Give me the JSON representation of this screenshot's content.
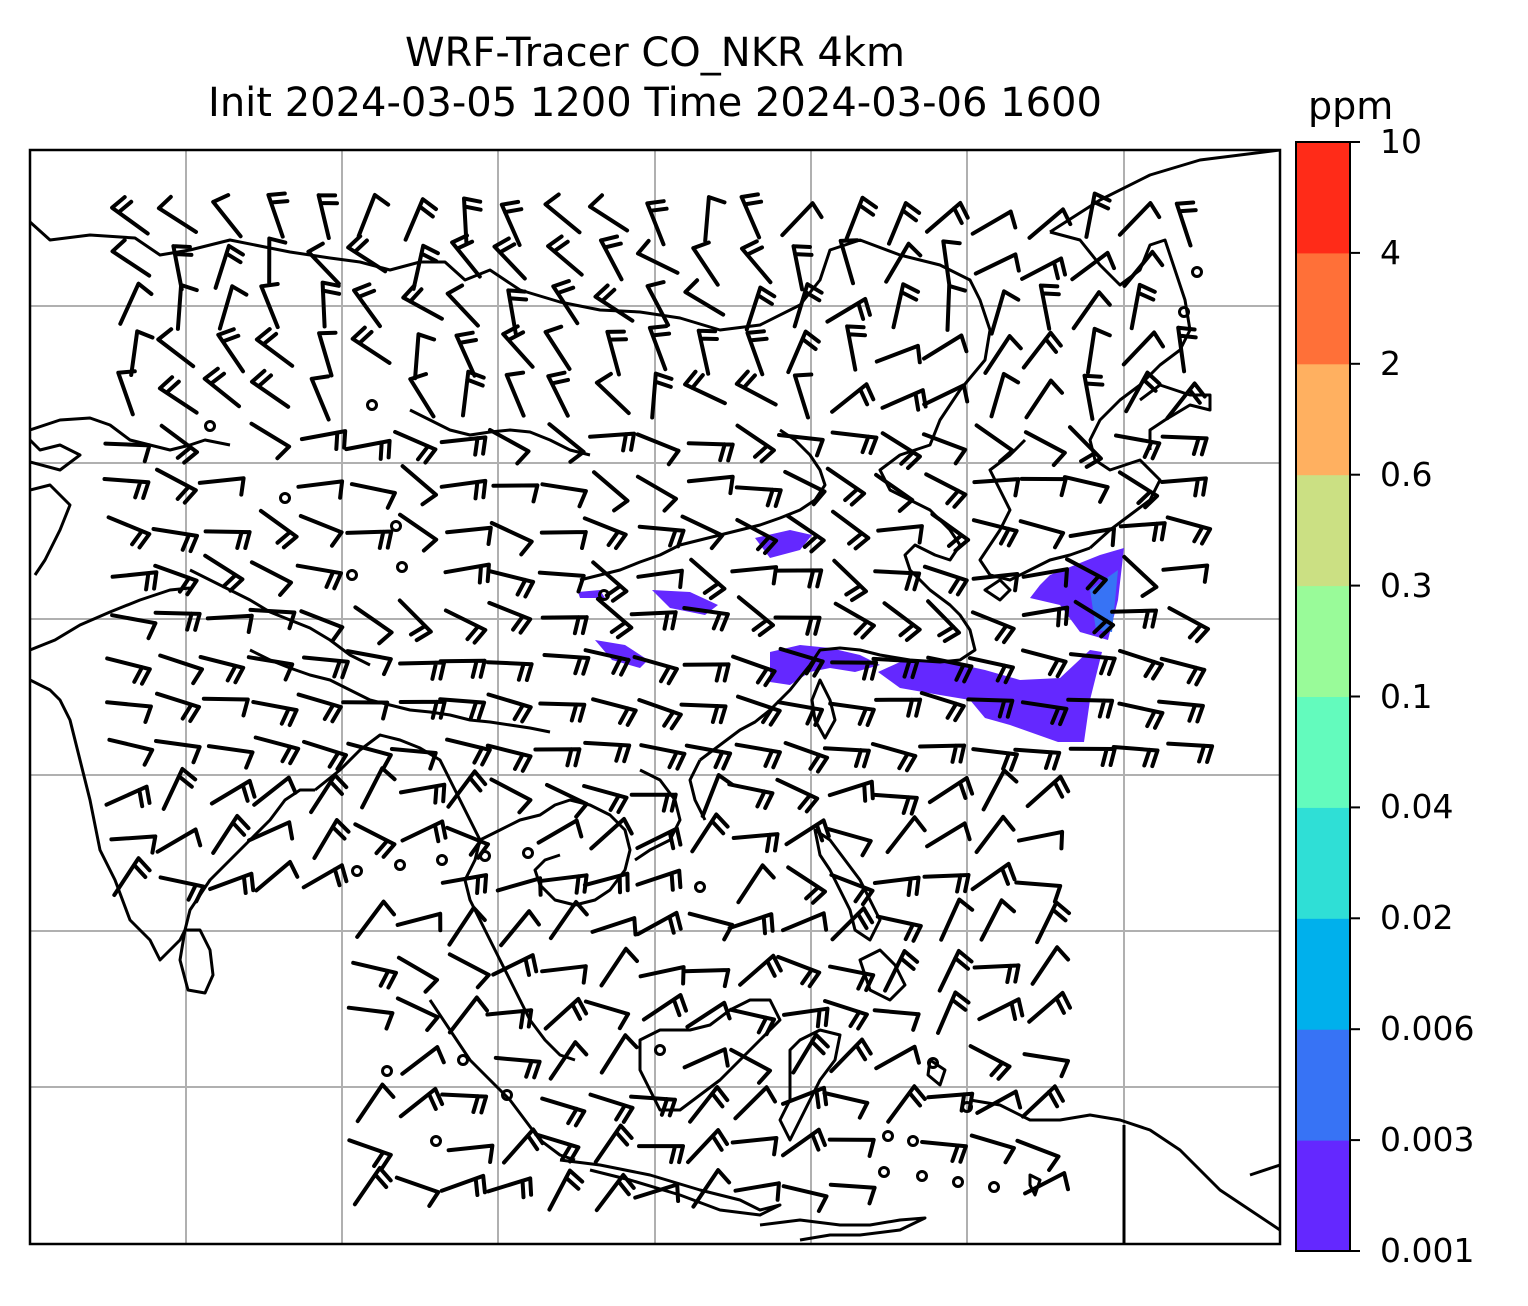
{
  "title_line1": "WRF-Tracer CO_NKR 4km",
  "title_line2": "Init 2024-03-05 1200 Time 2024-03-06 1600",
  "colorbar": {
    "unit": "ppm",
    "levels": [
      "0.001",
      "0.003",
      "0.006",
      "0.02",
      "0.04",
      "0.1",
      "0.3",
      "0.6",
      "2",
      "4",
      "10"
    ],
    "colors": [
      "#6428ff",
      "#3773f5",
      "#00b0ec",
      "#2fdfd6",
      "#63fbbd",
      "#99fb99",
      "#cbe083",
      "#ffb060",
      "#ff7038",
      "#ff2b18"
    ]
  },
  "map": {
    "gridlines": true,
    "coastlines": true,
    "field": "CO_NKR tracer concentration",
    "plume_color": "#6428ff",
    "plume_core_color": "#3773f5"
  }
}
